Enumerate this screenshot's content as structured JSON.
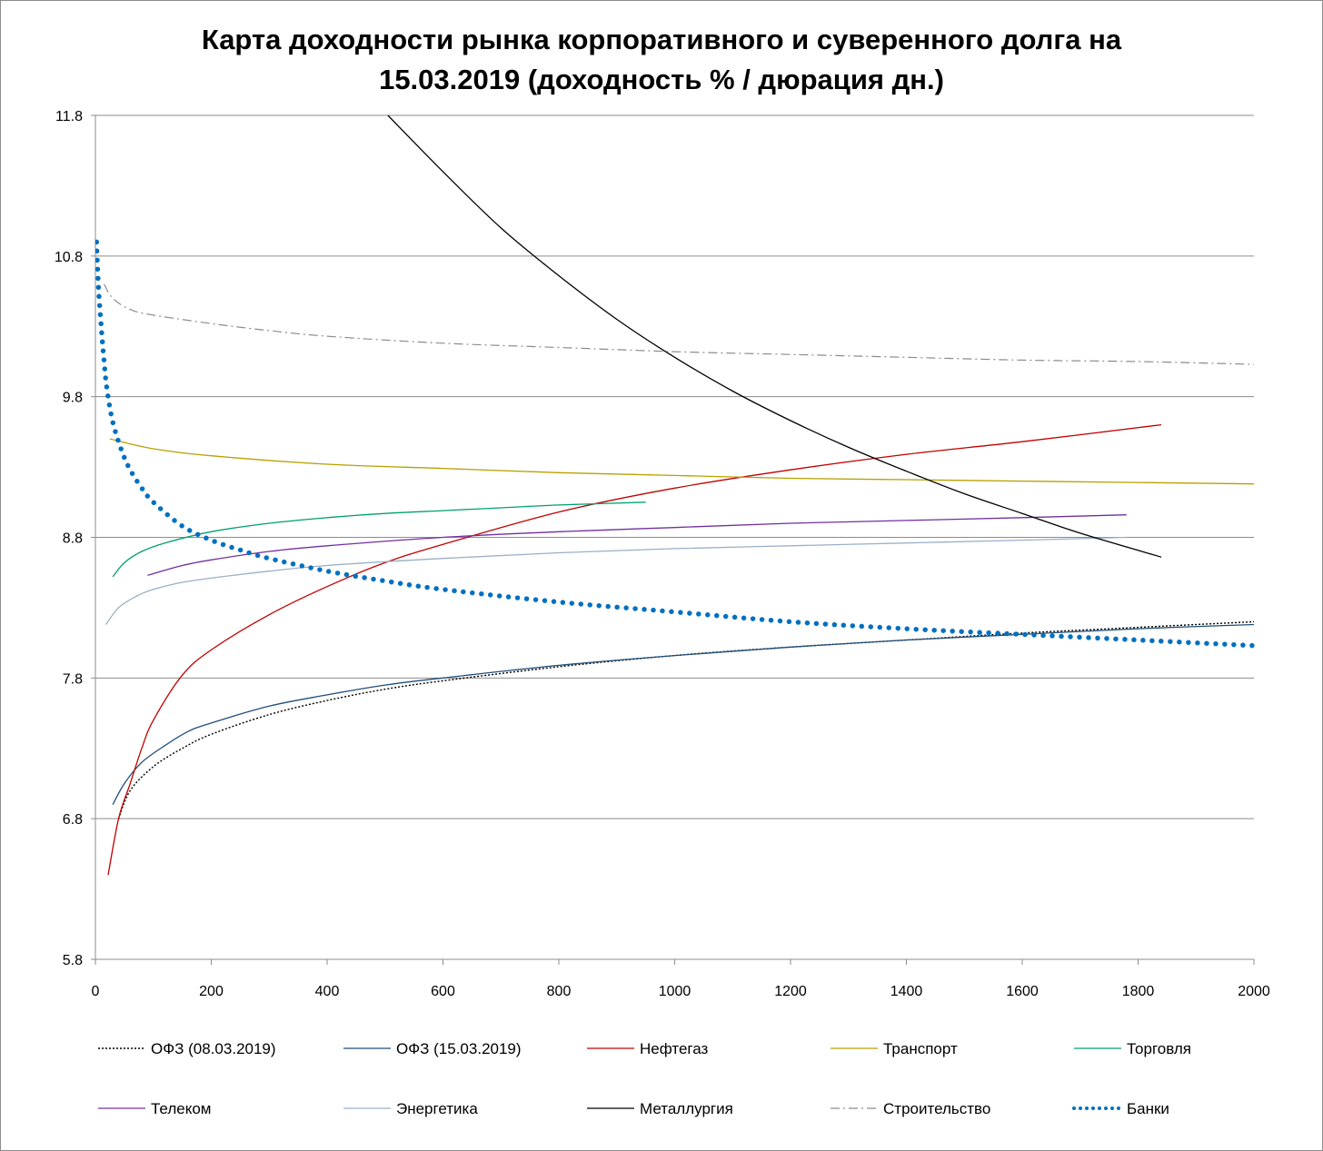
{
  "chart_data": {
    "type": "line",
    "title_line1": "Карта доходности рынка корпоративного и суверенного долга на",
    "title_line2": "15.03.2019 (доходность % / дюрация дн.)",
    "xlabel": "",
    "ylabel": "",
    "xlim": [
      0,
      2000
    ],
    "ylim": [
      5.8,
      11.8
    ],
    "x_ticks": [
      "0",
      "200",
      "400",
      "600",
      "800",
      "1000",
      "1200",
      "1400",
      "1600",
      "1800",
      "2000"
    ],
    "y_ticks": [
      "5.8",
      "6.8",
      "7.8",
      "8.8",
      "9.8",
      "10.8",
      "11.8"
    ],
    "grid": "horizontal",
    "legend_position": "bottom",
    "series": [
      {
        "name": "ОФЗ (08.03.2019)",
        "color": "#000000",
        "style": "dotted",
        "x": [
          40,
          60,
          100,
          150,
          200,
          300,
          400,
          500,
          600,
          800,
          1000,
          1200,
          1400,
          1600,
          1800,
          2000
        ],
        "y": [
          6.8,
          7.0,
          7.17,
          7.3,
          7.4,
          7.54,
          7.64,
          7.72,
          7.78,
          7.88,
          7.96,
          8.02,
          8.07,
          8.12,
          8.16,
          8.2
        ]
      },
      {
        "name": "ОФЗ (15.03.2019)",
        "color": "#1f4e79",
        "style": "solid",
        "x": [
          30,
          50,
          80,
          120,
          160,
          200,
          300,
          400,
          500,
          600,
          800,
          1000,
          1200,
          1400,
          1600,
          1800,
          2000
        ],
        "y": [
          6.9,
          7.05,
          7.2,
          7.32,
          7.42,
          7.48,
          7.6,
          7.68,
          7.75,
          7.8,
          7.89,
          7.96,
          8.02,
          8.07,
          8.11,
          8.15,
          8.18
        ]
      },
      {
        "name": "Нефтегаз",
        "color": "#c00000",
        "style": "solid",
        "x": [
          22,
          40,
          60,
          80,
          100,
          150,
          200,
          300,
          400,
          500,
          600,
          800,
          1000,
          1200,
          1400,
          1600,
          1840
        ],
        "y": [
          6.4,
          6.8,
          7.05,
          7.3,
          7.5,
          7.82,
          8.0,
          8.25,
          8.45,
          8.62,
          8.75,
          8.98,
          9.15,
          9.28,
          9.39,
          9.48,
          9.6
        ]
      },
      {
        "name": "Транспорт",
        "color": "#b8a000",
        "style": "solid",
        "x": [
          25,
          100,
          200,
          400,
          600,
          800,
          1000,
          1200,
          1400,
          1600,
          1800,
          2000
        ],
        "y": [
          9.5,
          9.43,
          9.38,
          9.32,
          9.29,
          9.26,
          9.24,
          9.22,
          9.21,
          9.2,
          9.19,
          9.18
        ]
      },
      {
        "name": "Торговля",
        "color": "#00a070",
        "style": "solid",
        "x": [
          30,
          50,
          80,
          120,
          200,
          300,
          400,
          500,
          600,
          700,
          800,
          950
        ],
        "y": [
          8.52,
          8.62,
          8.7,
          8.76,
          8.84,
          8.9,
          8.94,
          8.97,
          8.99,
          9.01,
          9.03,
          9.05
        ]
      },
      {
        "name": "Телеком",
        "color": "#7030a0",
        "style": "solid",
        "x": [
          90,
          150,
          200,
          300,
          400,
          600,
          800,
          1000,
          1200,
          1400,
          1600,
          1780
        ],
        "y": [
          8.53,
          8.6,
          8.64,
          8.7,
          8.74,
          8.8,
          8.84,
          8.87,
          8.9,
          8.92,
          8.94,
          8.96
        ]
      },
      {
        "name": "Энергетика",
        "color": "#9ab0c8",
        "style": "solid",
        "x": [
          18,
          40,
          70,
          100,
          150,
          200,
          300,
          400,
          600,
          800,
          1000,
          1200,
          1400,
          1600,
          1780
        ],
        "y": [
          8.18,
          8.3,
          8.38,
          8.43,
          8.48,
          8.51,
          8.56,
          8.6,
          8.65,
          8.69,
          8.72,
          8.74,
          8.76,
          8.78,
          8.8
        ]
      },
      {
        "name": "Металлургия",
        "color": "#000000",
        "style": "solid",
        "x": [
          505,
          600,
          700,
          800,
          900,
          1000,
          1100,
          1200,
          1300,
          1400,
          1500,
          1600,
          1700,
          1840
        ],
        "y": [
          11.8,
          11.4,
          11.0,
          10.66,
          10.35,
          10.08,
          9.84,
          9.63,
          9.44,
          9.27,
          9.11,
          8.97,
          8.83,
          8.66
        ]
      },
      {
        "name": "Строительство",
        "color": "#8c8c8c",
        "style": "dashdot",
        "x": [
          15,
          30,
          60,
          100,
          200,
          300,
          400,
          600,
          800,
          1000,
          1200,
          1400,
          1600,
          1800,
          2000
        ],
        "y": [
          10.6,
          10.5,
          10.42,
          10.38,
          10.32,
          10.27,
          10.23,
          10.18,
          10.15,
          10.12,
          10.1,
          10.08,
          10.06,
          10.05,
          10.03
        ]
      },
      {
        "name": "Банки",
        "color": "#0070c0",
        "style": "bigdots",
        "x": [
          2,
          5,
          10,
          15,
          20,
          30,
          45,
          60,
          80,
          100,
          150,
          200,
          250,
          300,
          400,
          500,
          600,
          800,
          1000,
          1200,
          1400,
          1600,
          1800,
          2000
        ],
        "y": [
          10.9,
          10.6,
          10.3,
          10.05,
          9.85,
          9.62,
          9.42,
          9.28,
          9.15,
          9.05,
          8.88,
          8.78,
          8.71,
          8.65,
          8.56,
          8.49,
          8.43,
          8.34,
          8.27,
          8.2,
          8.15,
          8.11,
          8.07,
          8.03
        ]
      }
    ]
  }
}
